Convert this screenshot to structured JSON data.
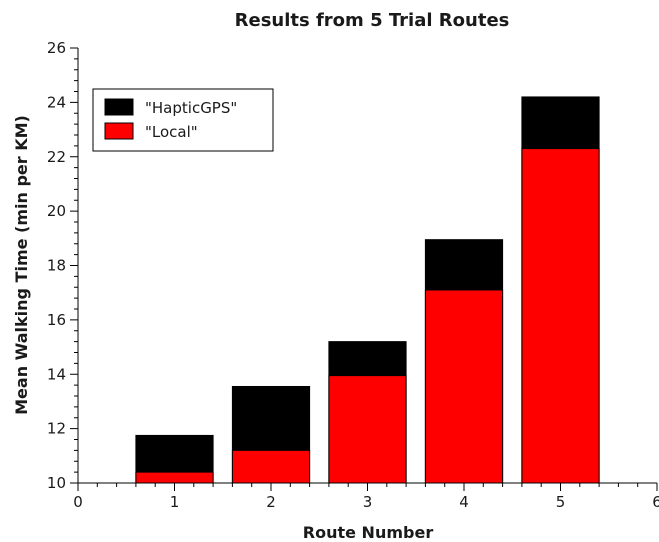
{
  "chart_data": {
    "type": "bar",
    "stacked": false,
    "overlapping": true,
    "title": "Results from 5 Trial Routes",
    "xlabel": "Route Number",
    "ylabel": "Mean Walking Time (min per KM)",
    "xlim": [
      0,
      6
    ],
    "ylim": [
      10,
      26
    ],
    "xticks": [
      0,
      1,
      2,
      3,
      4,
      5,
      6
    ],
    "xtick_labels": [
      "0",
      "1",
      "2",
      "3",
      "4",
      "5",
      "6"
    ],
    "yticks": [
      10,
      12,
      14,
      16,
      18,
      20,
      22,
      24,
      26
    ],
    "ytick_labels": [
      "10",
      "12",
      "14",
      "16",
      "18",
      "20",
      "22",
      "24",
      "26"
    ],
    "x": [
      1,
      2,
      3,
      4,
      5
    ],
    "bar_width": 0.8,
    "grid": false,
    "legend_position": "top-left",
    "series": [
      {
        "name": "\"HapticGPS\"",
        "color": "#000000",
        "values": [
          11.75,
          13.55,
          15.2,
          18.95,
          24.2
        ]
      },
      {
        "name": "\"Local\"",
        "color": "#ff0000",
        "values": [
          10.4,
          11.2,
          13.95,
          17.1,
          22.3
        ]
      }
    ]
  }
}
